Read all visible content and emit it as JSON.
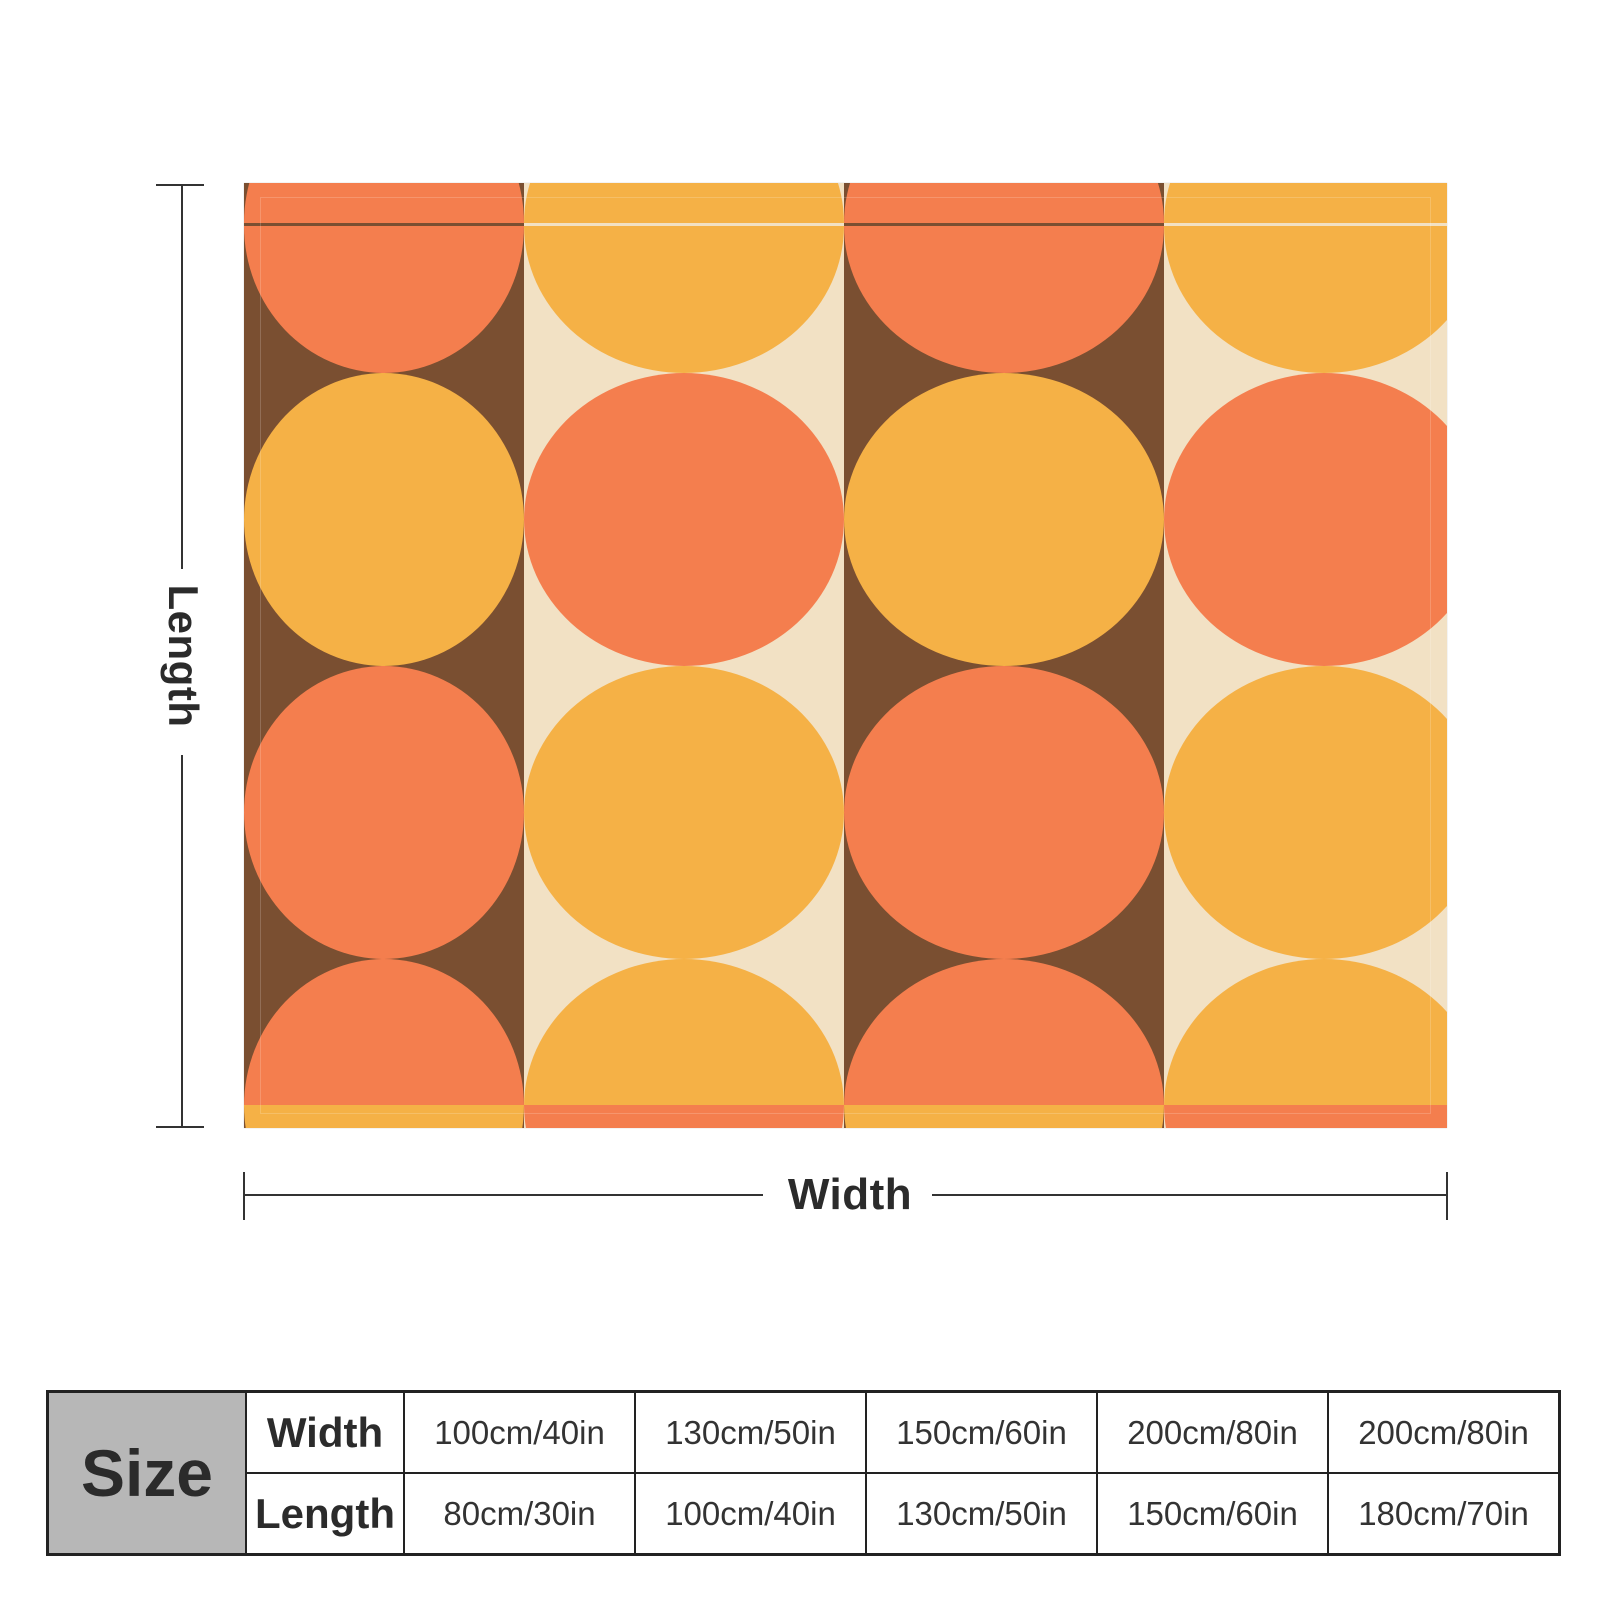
{
  "labels": {
    "length": "Length",
    "width": "Width"
  },
  "pattern": {
    "colors": {
      "orange": "#F47E4E",
      "yellow": "#F5B146",
      "brown": "#7A4F31",
      "cream": "#F2E1C4"
    },
    "columns": [
      {
        "background": "brown",
        "stack": [
          "orange",
          "orange",
          "yellow",
          "yellow",
          "orange",
          "orange",
          "orange",
          "yellow",
          "yellow"
        ]
      },
      {
        "background": "cream",
        "stack": [
          "yellow",
          "yellow",
          "orange",
          "orange",
          "yellow",
          "yellow",
          "yellow",
          "orange",
          "orange"
        ]
      },
      {
        "background": "brown",
        "stack": [
          "orange",
          "orange",
          "yellow",
          "yellow",
          "orange",
          "orange",
          "orange",
          "yellow",
          "yellow"
        ]
      },
      {
        "background": "cream",
        "stack": [
          "yellow",
          "yellow",
          "orange",
          "orange",
          "yellow",
          "yellow",
          "yellow",
          "orange",
          "orange"
        ]
      }
    ]
  },
  "size_table": {
    "title": "Size",
    "width_label": "Width",
    "length_label": "Length",
    "widths": [
      "100cm/40in",
      "130cm/50in",
      "150cm/60in",
      "200cm/80in",
      "200cm/80in"
    ],
    "lengths": [
      "80cm/30in",
      "100cm/40in",
      "130cm/50in",
      "150cm/60in",
      "180cm/70in"
    ]
  }
}
